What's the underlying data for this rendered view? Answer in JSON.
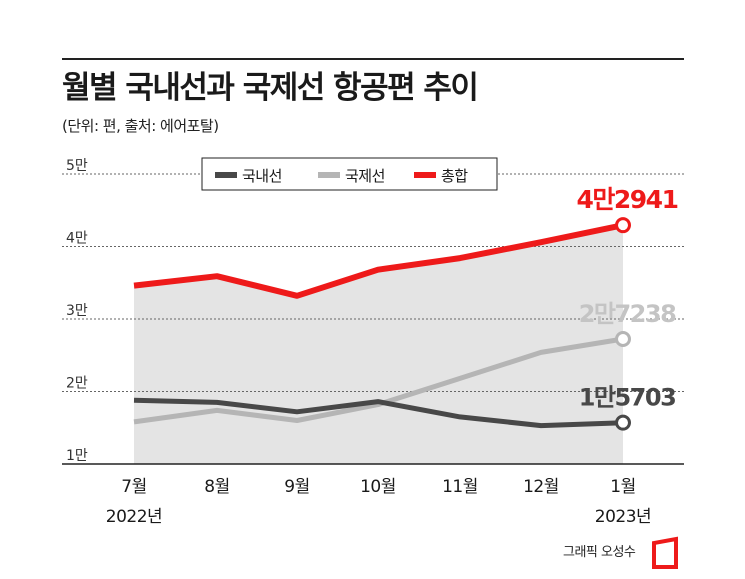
{
  "title": "월별 국내선과 국제선 항공편 추이",
  "subtitle": "(단위: 편, 출처: 에어포탈)",
  "credit": "그래픽 오성수",
  "colors": {
    "domestic": "#484848",
    "international": "#b5b5b5",
    "total": "#ee1a1a",
    "area": "#e4e4e4",
    "grid": "#666666"
  },
  "chart_data": {
    "type": "line",
    "categories": [
      "7월",
      "8월",
      "9월",
      "10월",
      "11월",
      "12월",
      "1월"
    ],
    "category_sublabels": [
      "2022년",
      "",
      "",
      "",
      "",
      "",
      "2023년"
    ],
    "ylim": [
      10000,
      50000
    ],
    "yticks": [
      {
        "value": 10000,
        "label": "1만"
      },
      {
        "value": 20000,
        "label": "2만"
      },
      {
        "value": 30000,
        "label": "3만"
      },
      {
        "value": 40000,
        "label": "4만"
      },
      {
        "value": 50000,
        "label": "5만"
      }
    ],
    "grid": true,
    "legend_position": "top-center",
    "series": [
      {
        "key": "domestic",
        "name": "국내선",
        "values": [
          18800,
          18500,
          17200,
          18600,
          16500,
          15300,
          15703
        ],
        "end_label": "1만5703"
      },
      {
        "key": "international",
        "name": "국제선",
        "values": [
          15800,
          17400,
          16000,
          18200,
          21800,
          25400,
          27238
        ],
        "end_label": "2만7238"
      },
      {
        "key": "total",
        "name": "총합",
        "values": [
          34600,
          35900,
          33200,
          36800,
          38400,
          40600,
          42941
        ],
        "end_label": "4만2941"
      }
    ]
  }
}
